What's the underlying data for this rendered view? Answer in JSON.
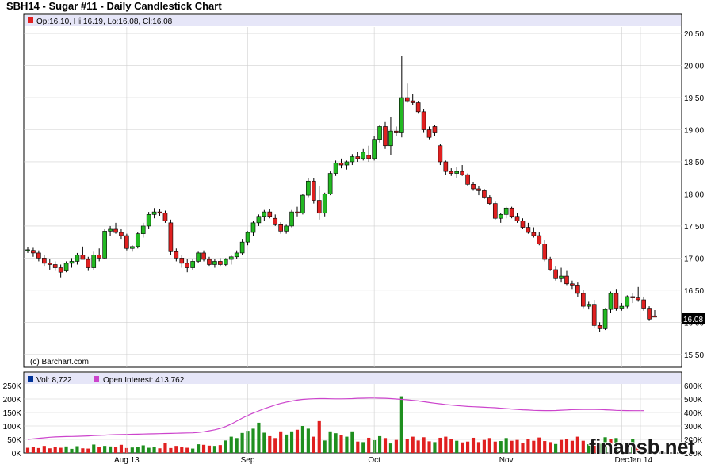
{
  "title": "SBH14 - Sugar #11 - Daily Candlestick Chart",
  "ohlc_label": "Op:16.10, Hi:16.19, Lo:16.08, Cl:16.08",
  "last_price": "16.08",
  "copyright": "(c) Barchart.com",
  "watermark": "finansb.net",
  "vol_label": "Vol: 8,722",
  "oi_label": "Open Interest: 413,762",
  "colors": {
    "up": "#22b922",
    "down": "#e02020",
    "neutral": "#003399",
    "oi": "#cc44cc",
    "legend_band": "#e6e6f8"
  },
  "chart_data": {
    "type": "candlestick",
    "title": "SBH14 - Sugar #11 - Daily Candlestick Chart",
    "x_labels": [
      "Aug 13",
      "Sep",
      "Oct",
      "Nov",
      "Dec",
      "Jan 14"
    ],
    "price_ticks": [
      "15.50",
      "16.00",
      "16.50",
      "17.00",
      "17.50",
      "18.00",
      "18.50",
      "19.00",
      "19.50",
      "20.00",
      "20.50"
    ],
    "price_ylim": [
      15.3,
      20.6
    ],
    "volume_ticks_left": [
      "0K",
      "50K",
      "100K",
      "150K",
      "200K",
      "250K"
    ],
    "volume_ticks_right": [
      "100K",
      "200K",
      "300K",
      "400K",
      "500K",
      "600K"
    ],
    "volume_ylim": [
      0,
      250000
    ],
    "oi_ylim": [
      100000,
      600000
    ],
    "ohlc": [
      [
        17.12,
        17.17,
        17.08,
        17.13
      ],
      [
        17.12,
        17.16,
        17.02,
        17.08
      ],
      [
        17.08,
        17.12,
        16.95,
        17.0
      ],
      [
        17.0,
        17.05,
        16.88,
        16.92
      ],
      [
        16.92,
        16.98,
        16.82,
        16.9
      ],
      [
        16.9,
        16.95,
        16.8,
        16.85
      ],
      [
        16.85,
        16.9,
        16.7,
        16.78
      ],
      [
        16.8,
        16.95,
        16.78,
        16.92
      ],
      [
        16.92,
        17.0,
        16.85,
        16.95
      ],
      [
        16.95,
        17.08,
        16.9,
        17.05
      ],
      [
        17.05,
        17.18,
        16.98,
        16.98
      ],
      [
        16.98,
        17.02,
        16.8,
        16.85
      ],
      [
        16.85,
        17.1,
        16.82,
        17.05
      ],
      [
        17.05,
        17.15,
        16.95,
        17.0
      ],
      [
        17.0,
        17.45,
        16.98,
        17.42
      ],
      [
        17.42,
        17.5,
        17.35,
        17.45
      ],
      [
        17.45,
        17.55,
        17.38,
        17.4
      ],
      [
        17.4,
        17.45,
        17.3,
        17.35
      ],
      [
        17.35,
        17.38,
        17.12,
        17.15
      ],
      [
        17.15,
        17.2,
        17.1,
        17.18
      ],
      [
        17.18,
        17.4,
        17.15,
        17.38
      ],
      [
        17.38,
        17.55,
        17.32,
        17.5
      ],
      [
        17.5,
        17.72,
        17.45,
        17.68
      ],
      [
        17.68,
        17.78,
        17.62,
        17.72
      ],
      [
        17.72,
        17.76,
        17.66,
        17.7
      ],
      [
        17.7,
        17.74,
        17.55,
        17.58
      ],
      [
        17.55,
        17.6,
        17.05,
        17.1
      ],
      [
        17.1,
        17.15,
        16.95,
        17.0
      ],
      [
        17.0,
        17.05,
        16.85,
        16.92
      ],
      [
        16.92,
        16.98,
        16.78,
        16.85
      ],
      [
        16.85,
        16.98,
        16.82,
        16.95
      ],
      [
        16.95,
        17.1,
        16.92,
        17.08
      ],
      [
        17.08,
        17.12,
        16.95,
        16.98
      ],
      [
        16.98,
        17.02,
        16.88,
        16.9
      ],
      [
        16.9,
        16.98,
        16.85,
        16.95
      ],
      [
        16.95,
        17.0,
        16.88,
        16.9
      ],
      [
        16.9,
        17.0,
        16.88,
        16.98
      ],
      [
        16.98,
        17.05,
        16.9,
        17.02
      ],
      [
        17.02,
        17.12,
        16.98,
        17.08
      ],
      [
        17.08,
        17.3,
        17.05,
        17.25
      ],
      [
        17.25,
        17.42,
        17.2,
        17.4
      ],
      [
        17.4,
        17.58,
        17.35,
        17.55
      ],
      [
        17.55,
        17.68,
        17.5,
        17.65
      ],
      [
        17.65,
        17.75,
        17.58,
        17.72
      ],
      [
        17.72,
        17.76,
        17.62,
        17.65
      ],
      [
        17.62,
        17.68,
        17.5,
        17.52
      ],
      [
        17.52,
        17.56,
        17.38,
        17.42
      ],
      [
        17.42,
        17.52,
        17.38,
        17.5
      ],
      [
        17.5,
        17.75,
        17.48,
        17.72
      ],
      [
        17.72,
        17.8,
        17.65,
        17.7
      ],
      [
        17.7,
        18.0,
        17.68,
        17.98
      ],
      [
        17.98,
        18.25,
        17.95,
        18.2
      ],
      [
        18.2,
        18.25,
        17.85,
        17.9
      ],
      [
        17.9,
        18.12,
        17.6,
        17.7
      ],
      [
        17.7,
        18.02,
        17.65,
        18.0
      ],
      [
        18.0,
        18.35,
        17.98,
        18.32
      ],
      [
        18.32,
        18.52,
        18.28,
        18.48
      ],
      [
        18.48,
        18.55,
        18.4,
        18.45
      ],
      [
        18.45,
        18.52,
        18.38,
        18.5
      ],
      [
        18.5,
        18.62,
        18.45,
        18.58
      ],
      [
        18.58,
        18.65,
        18.5,
        18.55
      ],
      [
        18.55,
        18.7,
        18.52,
        18.65
      ],
      [
        18.6,
        18.75,
        18.5,
        18.55
      ],
      [
        18.55,
        18.9,
        18.52,
        18.85
      ],
      [
        18.85,
        19.08,
        18.8,
        19.05
      ],
      [
        19.05,
        19.12,
        18.7,
        18.75
      ],
      [
        18.75,
        19.2,
        18.6,
        18.98
      ],
      [
        18.98,
        19.05,
        18.9,
        18.95
      ],
      [
        18.95,
        20.15,
        18.88,
        19.5
      ],
      [
        19.5,
        19.72,
        19.42,
        19.45
      ],
      [
        19.45,
        19.55,
        19.38,
        19.42
      ],
      [
        19.42,
        19.45,
        19.25,
        19.28
      ],
      [
        19.28,
        19.32,
        18.95,
        19.0
      ],
      [
        19.0,
        19.05,
        18.85,
        18.88
      ],
      [
        19.05,
        19.08,
        18.9,
        18.95
      ],
      [
        18.75,
        18.78,
        18.45,
        18.5
      ],
      [
        18.5,
        18.52,
        18.3,
        18.35
      ],
      [
        18.35,
        18.4,
        18.28,
        18.32
      ],
      [
        18.32,
        18.42,
        18.25,
        18.35
      ],
      [
        18.35,
        18.45,
        18.28,
        18.3
      ],
      [
        18.3,
        18.32,
        18.12,
        18.15
      ],
      [
        18.15,
        18.18,
        18.05,
        18.08
      ],
      [
        18.08,
        18.12,
        17.98,
        18.05
      ],
      [
        18.05,
        18.08,
        17.92,
        17.95
      ],
      [
        17.95,
        17.98,
        17.82,
        17.85
      ],
      [
        17.85,
        17.88,
        17.6,
        17.62
      ],
      [
        17.62,
        17.7,
        17.55,
        17.68
      ],
      [
        17.68,
        17.8,
        17.62,
        17.78
      ],
      [
        17.78,
        17.8,
        17.62,
        17.65
      ],
      [
        17.65,
        17.7,
        17.55,
        17.58
      ],
      [
        17.58,
        17.62,
        17.45,
        17.48
      ],
      [
        17.48,
        17.55,
        17.38,
        17.4
      ],
      [
        17.4,
        17.48,
        17.32,
        17.35
      ],
      [
        17.35,
        17.4,
        17.2,
        17.22
      ],
      [
        17.22,
        17.28,
        16.95,
        16.98
      ],
      [
        16.98,
        17.02,
        16.8,
        16.82
      ],
      [
        16.82,
        16.88,
        16.65,
        16.68
      ],
      [
        16.68,
        16.85,
        16.62,
        16.72
      ],
      [
        16.72,
        16.8,
        16.58,
        16.6
      ],
      [
        16.6,
        16.65,
        16.52,
        16.58
      ],
      [
        16.58,
        16.62,
        16.4,
        16.45
      ],
      [
        16.45,
        16.5,
        16.22,
        16.25
      ],
      [
        16.25,
        16.32,
        16.2,
        16.28
      ],
      [
        16.28,
        16.35,
        15.92,
        15.95
      ],
      [
        15.95,
        16.0,
        15.85,
        15.9
      ],
      [
        15.9,
        16.22,
        15.88,
        16.2
      ],
      [
        16.2,
        16.48,
        16.15,
        16.45
      ],
      [
        16.45,
        16.52,
        16.18,
        16.22
      ],
      [
        16.22,
        16.3,
        16.18,
        16.25
      ],
      [
        16.25,
        16.42,
        16.22,
        16.4
      ],
      [
        16.4,
        16.45,
        16.3,
        16.38
      ],
      [
        16.38,
        16.55,
        16.32,
        16.35
      ],
      [
        16.35,
        16.4,
        16.18,
        16.22
      ],
      [
        16.22,
        16.25,
        16.02,
        16.05
      ],
      [
        16.1,
        16.19,
        16.08,
        16.08
      ]
    ],
    "volume": [
      19000,
      21000,
      18000,
      26000,
      17000,
      22000,
      19000,
      24000,
      15000,
      25000,
      17000,
      16000,
      31000,
      21000,
      26000,
      24000,
      23000,
      30000,
      18000,
      20000,
      22000,
      28000,
      19000,
      21000,
      17000,
      38000,
      18000,
      26000,
      22000,
      19000,
      16000,
      32000,
      30000,
      27000,
      26000,
      29000,
      46000,
      60000,
      55000,
      74000,
      82000,
      90000,
      112000,
      75000,
      62000,
      55000,
      80000,
      68000,
      80000,
      86000,
      100000,
      90000,
      60000,
      118000,
      46000,
      80000,
      73000,
      65000,
      60000,
      80000,
      42000,
      40000,
      56000,
      47000,
      62000,
      55000,
      35000,
      48000,
      210000,
      50000,
      60000,
      46000,
      58000,
      43000,
      40000,
      56000,
      60000,
      52000,
      45000,
      39000,
      42000,
      56000,
      40000,
      48000,
      55000,
      42000,
      44000,
      55000,
      45000,
      48000,
      37000,
      52000,
      45000,
      57000,
      44000,
      40000,
      33000,
      48000,
      51000,
      45000,
      60000,
      45000,
      32000,
      40000,
      34000,
      58000,
      50000,
      55000,
      35000,
      26000,
      50000,
      20000,
      8722
    ],
    "volume_colors": [
      "d",
      "d",
      "d",
      "d",
      "d",
      "d",
      "d",
      "u",
      "u",
      "u",
      "d",
      "d",
      "u",
      "d",
      "u",
      "u",
      "d",
      "d",
      "d",
      "u",
      "u",
      "u",
      "u",
      "u",
      "d",
      "d",
      "d",
      "d",
      "d",
      "d",
      "u",
      "u",
      "d",
      "d",
      "u",
      "d",
      "u",
      "u",
      "u",
      "u",
      "u",
      "u",
      "u",
      "u",
      "d",
      "d",
      "d",
      "u",
      "u",
      "d",
      "u",
      "u",
      "d",
      "d",
      "u",
      "u",
      "u",
      "d",
      "u",
      "u",
      "d",
      "u",
      "d",
      "u",
      "u",
      "d",
      "u",
      "d",
      "u",
      "d",
      "d",
      "d",
      "d",
      "d",
      "u",
      "d",
      "d",
      "d",
      "u",
      "d",
      "d",
      "d",
      "d",
      "d",
      "d",
      "d",
      "u",
      "u",
      "d",
      "d",
      "d",
      "d",
      "d",
      "d",
      "d",
      "d",
      "u",
      "d",
      "d",
      "d",
      "d",
      "d",
      "u",
      "d",
      "u",
      "u",
      "d",
      "u",
      "u",
      "d",
      "u",
      "d",
      "d",
      "d",
      "d"
    ],
    "open_interest": [
      200000,
      204000,
      208000,
      212000,
      216000,
      218000,
      220000,
      221000,
      222000,
      223000,
      224000,
      226000,
      228000,
      230000,
      232000,
      234000,
      235000,
      236000,
      237000,
      238000,
      239000,
      240000,
      241000,
      242000,
      243000,
      244000,
      245000,
      246000,
      247000,
      248000,
      249000,
      252000,
      257000,
      264000,
      272000,
      282000,
      296000,
      314000,
      336000,
      358000,
      378000,
      396000,
      412000,
      428000,
      442000,
      455000,
      467000,
      477000,
      485000,
      492000,
      497000,
      500000,
      502000,
      503000,
      503000,
      502000,
      501000,
      501000,
      502000,
      503000,
      505000,
      506000,
      507000,
      507000,
      506000,
      505000,
      503000,
      500000,
      497000,
      494000,
      490000,
      486000,
      480000,
      474000,
      469000,
      464000,
      459000,
      455000,
      451000,
      448000,
      445000,
      443000,
      441000,
      439000,
      437000,
      435000,
      432000,
      429000,
      426000,
      423000,
      420000,
      418000,
      416000,
      415000,
      414000,
      414000,
      415000,
      417000,
      419000,
      421000,
      422000,
      423000,
      423000,
      423000,
      422000,
      420000,
      418000,
      416000,
      415000,
      414000,
      413762,
      413762,
      413762
    ]
  }
}
